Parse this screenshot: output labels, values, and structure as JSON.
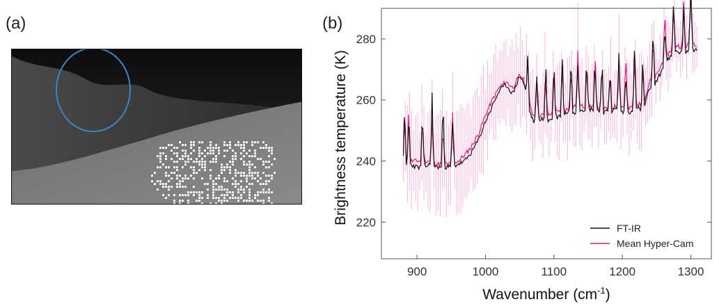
{
  "panel_a": {
    "label": "(a)",
    "circle_color": "#3a86c8"
  },
  "panel_b": {
    "label": "(b)"
  },
  "chart_data": {
    "type": "line",
    "xlabel_base": "Wavenumber (cm",
    "xlabel_sup": "-1",
    "xlabel_end": ")",
    "ylabel": "Brightness temperature (K)",
    "xlim": [
      848,
      1330
    ],
    "ylim": [
      208,
      290
    ],
    "xticks": [
      "900",
      "1000",
      "1100",
      "1200",
      "1300"
    ],
    "yticks": [
      "220",
      "240",
      "260",
      "280"
    ],
    "grid": false,
    "legend_position": "bottom-right",
    "series": [
      {
        "name": "FT-IR",
        "color": "#111111",
        "x": [
          880,
          890,
          900,
          910,
          920,
          930,
          940,
          950,
          960,
          970,
          980,
          990,
          1000,
          1010,
          1020,
          1030,
          1040,
          1050,
          1055,
          1060,
          1065,
          1070,
          1080,
          1090,
          1100,
          1110,
          1120,
          1130,
          1140,
          1150,
          1160,
          1170,
          1180,
          1190,
          1200,
          1210,
          1220,
          1230,
          1240,
          1250,
          1260,
          1270,
          1280,
          1290,
          1300,
          1310
        ],
        "y": [
          238,
          239,
          238,
          238,
          239,
          238,
          238,
          238,
          239,
          240,
          243,
          247,
          253,
          258,
          263,
          265,
          262,
          268,
          266,
          262,
          256,
          253,
          254,
          253,
          254,
          255,
          256,
          256,
          257,
          257,
          257,
          256,
          256,
          257,
          256,
          256,
          258,
          256,
          264,
          266,
          271,
          274,
          276,
          275,
          277,
          276
        ]
      },
      {
        "name": "Mean Hyper-Cam",
        "color": "#e8177d",
        "x": [
          880,
          890,
          900,
          910,
          920,
          930,
          940,
          950,
          960,
          970,
          980,
          990,
          1000,
          1010,
          1020,
          1030,
          1040,
          1050,
          1055,
          1060,
          1065,
          1070,
          1080,
          1090,
          1100,
          1110,
          1120,
          1130,
          1140,
          1150,
          1160,
          1170,
          1180,
          1190,
          1200,
          1210,
          1220,
          1230,
          1240,
          1250,
          1260,
          1270,
          1280,
          1290,
          1300,
          1310
        ],
        "y": [
          240,
          240,
          240,
          240,
          240,
          239,
          239,
          239,
          240,
          242,
          245,
          249,
          255,
          260,
          264,
          266,
          264,
          268,
          267,
          263,
          258,
          255,
          255,
          255,
          256,
          256,
          257,
          258,
          258,
          258,
          258,
          257,
          257,
          258,
          258,
          257,
          259,
          258,
          266,
          268,
          273,
          276,
          278,
          277,
          279,
          278
        ]
      }
    ],
    "error_bars_color": "#f7b6dc"
  }
}
